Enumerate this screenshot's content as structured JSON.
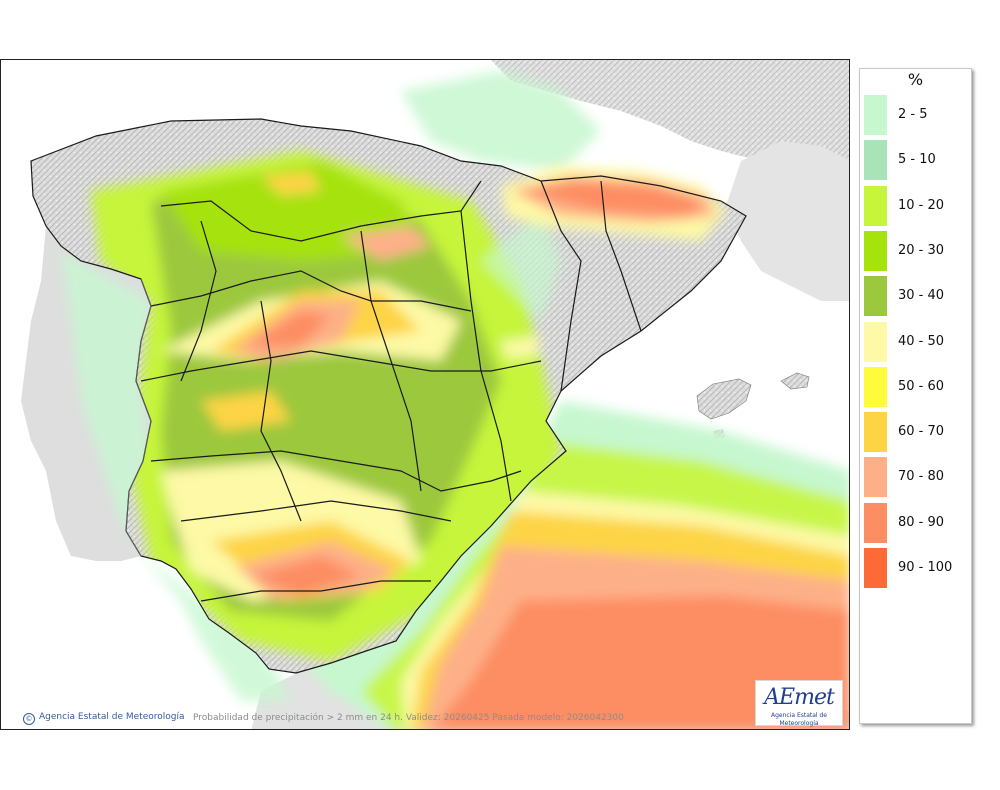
{
  "map": {
    "copyright_text": "Agencia Estatal de Meteorología",
    "copyright_icon": "copyright-icon",
    "caption": "Probabilidad de precipitación > 2 mm en 24 h. Validez: 20260425 Pasada modelo: 2026042300",
    "logo": {
      "text": "AEmet",
      "subtitle": "Agencia Estatal de Meteorología"
    }
  },
  "legend": {
    "title": "%",
    "items": [
      {
        "label": "2 - 5",
        "color": "#c6f7cf"
      },
      {
        "label": "5 - 10",
        "color": "#a9e4b9"
      },
      {
        "label": "10 - 20",
        "color": "#c6f53a"
      },
      {
        "label": "20 - 30",
        "color": "#a6e20c"
      },
      {
        "label": "30 - 40",
        "color": "#9cc83e"
      },
      {
        "label": "40 - 50",
        "color": "#fdf9a6"
      },
      {
        "label": "50 - 60",
        "color": "#fdfb3c"
      },
      {
        "label": "60 - 70",
        "color": "#fdd444"
      },
      {
        "label": "70 - 80",
        "color": "#fdb088"
      },
      {
        "label": "80 - 90",
        "color": "#fd8d62"
      },
      {
        "label": "90 - 100",
        "color": "#fd6937"
      }
    ]
  }
}
